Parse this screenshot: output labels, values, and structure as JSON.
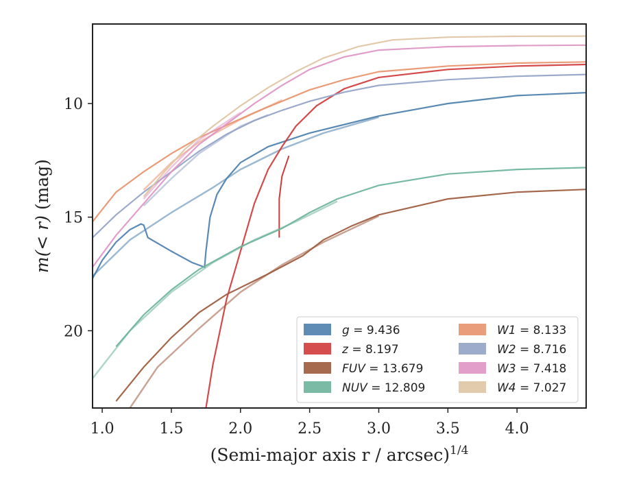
{
  "chart_data": {
    "type": "line",
    "xlabel": "(Semi-major axis r / arcsec)",
    "xlabel_sup": "1/4",
    "ylabel_prefix": "m(< r)",
    "ylabel_suffix": " (mag)",
    "xlim": [
      0.93,
      4.5
    ],
    "ylim": [
      23.4,
      6.5
    ],
    "y_inverted": true,
    "grid": false,
    "legend_position": "lower-right",
    "xticks": [
      1.0,
      1.5,
      2.0,
      2.5,
      3.0,
      3.5,
      4.0
    ],
    "xtick_labels": [
      "1.0",
      "1.5",
      "2.0",
      "2.5",
      "3.0",
      "3.5",
      "4.0"
    ],
    "yticks": [
      10,
      15,
      20
    ],
    "ytick_labels": [
      "10",
      "15",
      "20"
    ],
    "series": [
      {
        "name": "g",
        "value": "9.436",
        "label": "g = 9.436",
        "color": "#4c7fad",
        "points": [
          [
            0.93,
            17.7
          ],
          [
            1.0,
            16.9
          ],
          [
            1.1,
            16.1
          ],
          [
            1.2,
            15.55
          ],
          [
            1.28,
            15.3
          ],
          [
            1.3,
            15.35
          ],
          [
            1.33,
            15.9
          ],
          [
            1.5,
            16.5
          ],
          [
            1.65,
            17.0
          ],
          [
            1.74,
            17.2
          ],
          [
            1.75,
            16.5
          ],
          [
            1.78,
            15.0
          ],
          [
            1.83,
            14.0
          ],
          [
            1.9,
            13.3
          ],
          [
            2.0,
            12.6
          ],
          [
            2.2,
            11.9
          ],
          [
            2.5,
            11.3
          ],
          [
            3.0,
            10.55
          ],
          [
            3.5,
            10.0
          ],
          [
            4.0,
            9.65
          ],
          [
            4.5,
            9.52
          ]
        ],
        "smooth_points": [
          [
            0.93,
            17.6
          ],
          [
            1.2,
            16.0
          ],
          [
            1.5,
            14.8
          ],
          [
            1.8,
            13.7
          ],
          [
            2.0,
            12.9
          ],
          [
            2.3,
            12.0
          ],
          [
            2.6,
            11.3
          ],
          [
            3.0,
            10.6
          ]
        ]
      },
      {
        "name": "z",
        "value": "8.197",
        "label": "z = 8.197",
        "color": "#d03a3a",
        "points": [
          [
            1.75,
            23.4
          ],
          [
            1.8,
            21.5
          ],
          [
            1.9,
            18.6
          ],
          [
            2.0,
            16.5
          ],
          [
            2.1,
            14.4
          ],
          [
            2.2,
            12.9
          ],
          [
            2.3,
            11.9
          ],
          [
            2.4,
            11.0
          ],
          [
            2.55,
            10.1
          ],
          [
            2.75,
            9.35
          ],
          [
            3.0,
            8.85
          ],
          [
            3.5,
            8.5
          ],
          [
            4.0,
            8.35
          ],
          [
            4.5,
            8.28
          ]
        ],
        "cusp_points": [
          [
            2.28,
            15.9
          ],
          [
            2.28,
            14.2
          ],
          [
            2.3,
            13.2
          ],
          [
            2.35,
            12.3
          ]
        ]
      },
      {
        "name": "FUV",
        "value": "13.679",
        "label": "FUV = 13.679",
        "color": "#9c5a3c",
        "points": [
          [
            1.1,
            23.1
          ],
          [
            1.3,
            21.6
          ],
          [
            1.5,
            20.3
          ],
          [
            1.7,
            19.2
          ],
          [
            1.9,
            18.4
          ],
          [
            2.2,
            17.5
          ],
          [
            2.45,
            16.7
          ],
          [
            2.6,
            16.0
          ],
          [
            2.8,
            15.4
          ],
          [
            3.0,
            14.9
          ],
          [
            3.5,
            14.2
          ],
          [
            4.0,
            13.9
          ],
          [
            4.5,
            13.78
          ]
        ],
        "smooth_points": [
          [
            1.2,
            23.4
          ],
          [
            1.4,
            21.6
          ],
          [
            1.7,
            19.9
          ],
          [
            2.0,
            18.3
          ],
          [
            2.3,
            17.1
          ],
          [
            2.6,
            16.1
          ],
          [
            3.0,
            14.95
          ]
        ]
      },
      {
        "name": "NUV",
        "value": "12.809",
        "label": "NUV = 12.809",
        "color": "#6db39a",
        "points": [
          [
            1.1,
            20.7
          ],
          [
            1.3,
            19.3
          ],
          [
            1.5,
            18.2
          ],
          [
            1.7,
            17.3
          ],
          [
            2.0,
            16.3
          ],
          [
            2.3,
            15.5
          ],
          [
            2.5,
            14.8
          ],
          [
            2.7,
            14.2
          ],
          [
            3.0,
            13.6
          ],
          [
            3.5,
            13.1
          ],
          [
            4.0,
            12.9
          ],
          [
            4.5,
            12.82
          ]
        ],
        "smooth_points": [
          [
            0.93,
            22.1
          ],
          [
            1.2,
            20.0
          ],
          [
            1.5,
            18.3
          ],
          [
            1.8,
            17.0
          ],
          [
            2.1,
            16.0
          ],
          [
            2.4,
            15.2
          ],
          [
            2.7,
            14.3
          ]
        ]
      },
      {
        "name": "W1",
        "value": "8.133",
        "label": "W1 = 8.133",
        "color": "#e8926c",
        "points": [
          [
            0.93,
            15.2
          ],
          [
            1.1,
            13.9
          ],
          [
            1.3,
            13.0
          ],
          [
            1.5,
            12.2
          ],
          [
            1.7,
            11.5
          ],
          [
            1.9,
            10.95
          ],
          [
            2.1,
            10.4
          ],
          [
            2.3,
            9.9
          ],
          [
            2.5,
            9.4
          ],
          [
            2.75,
            8.95
          ],
          [
            3.0,
            8.6
          ],
          [
            3.5,
            8.35
          ],
          [
            4.0,
            8.22
          ],
          [
            4.5,
            8.17
          ]
        ],
        "smooth_points": [
          [
            1.3,
            13.8
          ],
          [
            1.5,
            12.6
          ],
          [
            1.7,
            11.7
          ],
          [
            2.0,
            10.7
          ],
          [
            2.3,
            9.85
          ]
        ]
      },
      {
        "name": "W2",
        "value": "8.716",
        "label": "W2 = 8.716",
        "color": "#93a3c6",
        "points": [
          [
            0.93,
            15.9
          ],
          [
            1.1,
            14.9
          ],
          [
            1.3,
            13.9
          ],
          [
            1.5,
            13.0
          ],
          [
            1.7,
            12.1
          ],
          [
            1.9,
            11.35
          ],
          [
            2.1,
            10.75
          ],
          [
            2.3,
            10.3
          ],
          [
            2.5,
            9.9
          ],
          [
            2.75,
            9.5
          ],
          [
            3.0,
            9.2
          ],
          [
            3.5,
            8.95
          ],
          [
            4.0,
            8.8
          ],
          [
            4.5,
            8.72
          ]
        ],
        "smooth_points": [
          [
            1.3,
            14.5
          ],
          [
            1.5,
            13.3
          ],
          [
            1.7,
            12.2
          ],
          [
            2.0,
            11.0
          ],
          [
            2.2,
            10.5
          ]
        ]
      },
      {
        "name": "W3",
        "value": "7.418",
        "label": "W3 = 7.418",
        "color": "#de95c4",
        "points": [
          [
            0.93,
            17.2
          ],
          [
            1.1,
            15.8
          ],
          [
            1.3,
            14.4
          ],
          [
            1.5,
            13.0
          ],
          [
            1.7,
            11.8
          ],
          [
            1.9,
            10.9
          ],
          [
            2.1,
            10.0
          ],
          [
            2.3,
            9.2
          ],
          [
            2.5,
            8.5
          ],
          [
            2.75,
            7.95
          ],
          [
            3.0,
            7.65
          ],
          [
            3.5,
            7.5
          ],
          [
            4.0,
            7.45
          ],
          [
            4.5,
            7.43
          ]
        ],
        "smooth_points": [
          [
            1.3,
            14.2
          ],
          [
            1.5,
            12.8
          ],
          [
            1.7,
            11.6
          ],
          [
            2.0,
            10.4
          ]
        ]
      },
      {
        "name": "W4",
        "value": "7.027",
        "label": "W4 = 7.027",
        "color": "#dfc4a4",
        "points": [
          [
            1.3,
            14.1
          ],
          [
            1.45,
            13.0
          ],
          [
            1.6,
            12.0
          ],
          [
            1.8,
            11.0
          ],
          [
            2.0,
            10.1
          ],
          [
            2.2,
            9.3
          ],
          [
            2.4,
            8.6
          ],
          [
            2.6,
            8.0
          ],
          [
            2.85,
            7.5
          ],
          [
            3.1,
            7.2
          ],
          [
            3.5,
            7.08
          ],
          [
            4.0,
            7.04
          ],
          [
            4.5,
            7.03
          ]
        ]
      }
    ]
  }
}
